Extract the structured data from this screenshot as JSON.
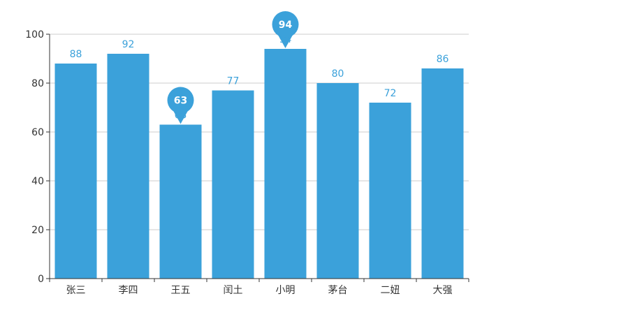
{
  "chart_data": {
    "type": "bar",
    "title": "",
    "xlabel": "",
    "ylabel": "",
    "categories": [
      "张三",
      "李四",
      "王五",
      "闰土",
      "小明",
      "茅台",
      "二妞",
      "大强"
    ],
    "values": [
      88,
      92,
      63,
      77,
      94,
      80,
      72,
      86
    ],
    "ylim": [
      0,
      100
    ],
    "yticks": [
      0,
      20,
      40,
      60,
      80,
      100
    ],
    "grid": true,
    "series_color": "#3ba1da",
    "label_color": "#3ba1da",
    "axis_color": "#333333",
    "grid_color": "#cccccc",
    "mark_points": [
      {
        "category": "王五",
        "value": 63,
        "label": "63",
        "kind": "min"
      },
      {
        "category": "小明",
        "value": 94,
        "label": "94",
        "kind": "max"
      }
    ]
  }
}
